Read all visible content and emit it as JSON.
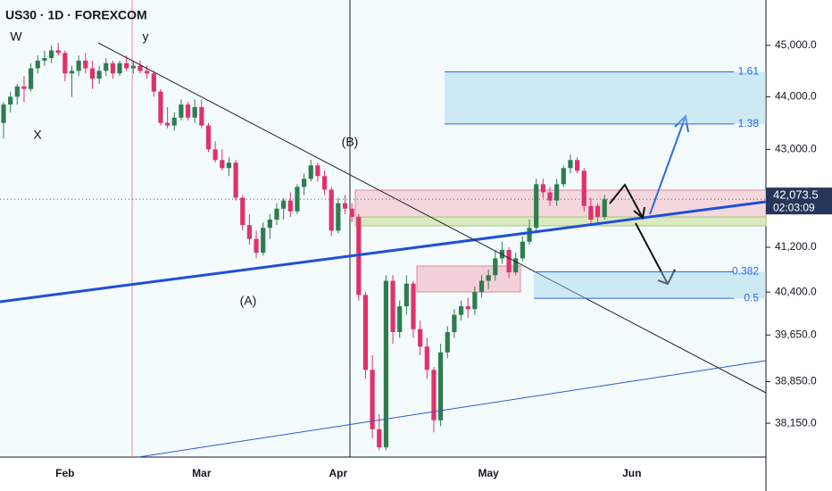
{
  "chart_data": {
    "type": "candlestick",
    "title": "US30 · 1D · FOREXCOM",
    "log_scale": true,
    "up_color": "#2e7d4f",
    "down_color": "#e0316b",
    "ylim": [
      37590,
      45900
    ],
    "yticks": [
      {
        "value": 45000,
        "label": "45,000.0"
      },
      {
        "value": 44000,
        "label": "44,000.0"
      },
      {
        "value": 43000,
        "label": "43,000.0"
      },
      {
        "value": 41200,
        "label": "41,200.0"
      },
      {
        "value": 40400,
        "label": "40,400.0"
      },
      {
        "value": 39650,
        "label": "39,650.0"
      },
      {
        "value": 38850,
        "label": "38,850.0"
      },
      {
        "value": 38150,
        "label": "38,150.0"
      }
    ],
    "last_price": {
      "value": 42073.5,
      "label": "42,073.5"
    },
    "countdown": "02:03:09",
    "categories": [
      null,
      null,
      null,
      null,
      null,
      null,
      null,
      null,
      null,
      "Feb",
      null,
      null,
      null,
      null,
      null,
      null,
      null,
      null,
      null,
      null,
      null,
      null,
      null,
      null,
      null,
      null,
      null,
      null,
      null,
      "Mar",
      null,
      null,
      null,
      null,
      null,
      null,
      null,
      null,
      null,
      null,
      null,
      null,
      null,
      null,
      null,
      null,
      null,
      null,
      null,
      "Apr",
      null,
      null,
      null,
      null,
      null,
      null,
      null,
      null,
      null,
      null,
      null,
      null,
      null,
      null,
      null,
      null,
      null,
      null,
      null,
      null,
      null,
      "May",
      null,
      null,
      null,
      null,
      null,
      null,
      null,
      null,
      null,
      null,
      null,
      null,
      null,
      null,
      null,
      null,
      null,
      null,
      null,
      null,
      "Jun",
      null,
      null,
      null,
      null,
      null,
      null,
      null,
      null,
      null,
      null,
      null,
      null,
      null,
      null,
      null,
      null,
      null,
      null,
      null
    ],
    "open": [
      43500,
      43850,
      44000,
      44200,
      44150,
      44550,
      44700,
      44750,
      44900,
      44850,
      44450,
      44500,
      44700,
      44550,
      44350,
      44500,
      44650,
      44450,
      44650,
      44550,
      44600,
      44500,
      44450,
      44100,
      43500,
      43450,
      43600,
      43850,
      43600,
      43800,
      43450,
      43000,
      42800,
      42650,
      42750,
      42100,
      41600,
      41350,
      41100,
      41550,
      41700,
      41900,
      42050,
      41850,
      42300,
      42450,
      42700,
      42500,
      42250,
      41500,
      42000,
      41900,
      41750,
      40350,
      39050,
      38050,
      37750,
      40600,
      39700,
      40150,
      40550,
      39750,
      39450,
      39050,
      38200,
      39350,
      39700,
      40000,
      40150,
      40100,
      40400,
      40600,
      40700,
      41000,
      41150,
      40750,
      41000,
      41300,
      41550,
      42350,
      42200,
      42050,
      42350,
      42650,
      42800,
      42600,
      41950,
      41950,
      41750,
      null,
      null,
      null,
      null,
      null,
      null,
      null,
      null,
      null,
      null,
      null,
      null,
      null,
      null,
      null,
      null,
      null,
      null,
      null,
      null,
      null,
      null,
      null
    ],
    "high": [
      43900,
      44100,
      44250,
      44400,
      44650,
      44800,
      44900,
      45000,
      45050,
      44900,
      44600,
      44800,
      44850,
      44700,
      44600,
      44750,
      44700,
      44700,
      44800,
      44700,
      44700,
      44600,
      44500,
      44150,
      43800,
      43700,
      43950,
      43900,
      43950,
      43950,
      43500,
      43150,
      43000,
      42850,
      42800,
      42150,
      41800,
      41500,
      41650,
      41800,
      42000,
      42100,
      42200,
      42350,
      42550,
      42800,
      42750,
      42600,
      42300,
      42100,
      42150,
      42000,
      41800,
      40400,
      39300,
      38300,
      40700,
      40700,
      40250,
      40700,
      40600,
      39900,
      39600,
      39100,
      39500,
      39800,
      40100,
      40250,
      40300,
      40500,
      40700,
      40800,
      41150,
      41300,
      41200,
      41100,
      41400,
      41700,
      42450,
      42450,
      42300,
      42450,
      42700,
      42900,
      42850,
      42650,
      42100,
      42000,
      42150,
      null,
      null,
      null,
      null,
      null,
      null,
      null,
      null,
      null,
      null,
      null,
      null,
      null,
      null,
      null,
      null,
      null,
      null,
      null,
      null,
      null,
      null,
      null
    ],
    "low": [
      43200,
      43700,
      43850,
      43900,
      44100,
      44450,
      44600,
      44650,
      44800,
      44300,
      44000,
      44400,
      44450,
      44150,
      44250,
      44400,
      44350,
      44400,
      44500,
      44450,
      44450,
      44350,
      44000,
      43450,
      43400,
      43350,
      43550,
      43550,
      43500,
      43400,
      42950,
      42750,
      42600,
      42500,
      42050,
      41500,
      41250,
      41000,
      41050,
      41350,
      41600,
      41700,
      41750,
      41800,
      42150,
      42400,
      42400,
      42150,
      41400,
      41450,
      41800,
      41650,
      40250,
      38900,
      37900,
      37700,
      37700,
      39500,
      39600,
      40000,
      39600,
      39300,
      38900,
      38000,
      38100,
      39250,
      39600,
      39900,
      39950,
      40000,
      40300,
      40450,
      40600,
      40900,
      40650,
      40700,
      40950,
      41250,
      41500,
      42100,
      41950,
      41950,
      42300,
      42550,
      42550,
      41850,
      41600,
      41650,
      41700,
      null,
      null,
      null,
      null,
      null,
      null,
      null,
      null,
      null,
      null,
      null,
      null,
      null,
      null,
      null,
      null,
      null,
      null,
      null,
      null,
      null,
      null,
      null
    ],
    "close": [
      43850,
      44000,
      44200,
      44150,
      44550,
      44700,
      44750,
      44900,
      44850,
      44450,
      44500,
      44700,
      44550,
      44350,
      44500,
      44650,
      44450,
      44650,
      44550,
      44600,
      44500,
      44450,
      44100,
      43500,
      43450,
      43600,
      43850,
      43600,
      43800,
      43450,
      43000,
      42800,
      42650,
      42750,
      42100,
      41600,
      41350,
      41100,
      41550,
      41700,
      41900,
      42050,
      41850,
      42300,
      42450,
      42700,
      42500,
      42250,
      41500,
      42000,
      41900,
      41750,
      40350,
      39050,
      38050,
      37750,
      40600,
      39700,
      40150,
      40550,
      39750,
      39450,
      39050,
      38200,
      39350,
      39700,
      40000,
      40150,
      40100,
      40400,
      40600,
      40700,
      41000,
      41150,
      40750,
      41000,
      41300,
      41550,
      42350,
      42200,
      42050,
      42350,
      42650,
      42800,
      42600,
      41950,
      41700,
      41750,
      42073.5,
      null,
      null,
      null,
      null,
      null,
      null,
      null,
      null,
      null,
      null,
      null,
      null,
      null,
      null,
      null,
      null,
      null,
      null,
      null,
      null,
      null,
      null,
      null
    ],
    "fib_levels": [
      {
        "label": "1.61",
        "price": 44480
      },
      {
        "label": "1.38",
        "price": 43480
      },
      {
        "label": "0.382",
        "price": 40760
      },
      {
        "label": "0.5",
        "price": 40290
      }
    ],
    "annotations": [
      "W",
      "y",
      "X",
      "(A)",
      "(B)"
    ]
  }
}
